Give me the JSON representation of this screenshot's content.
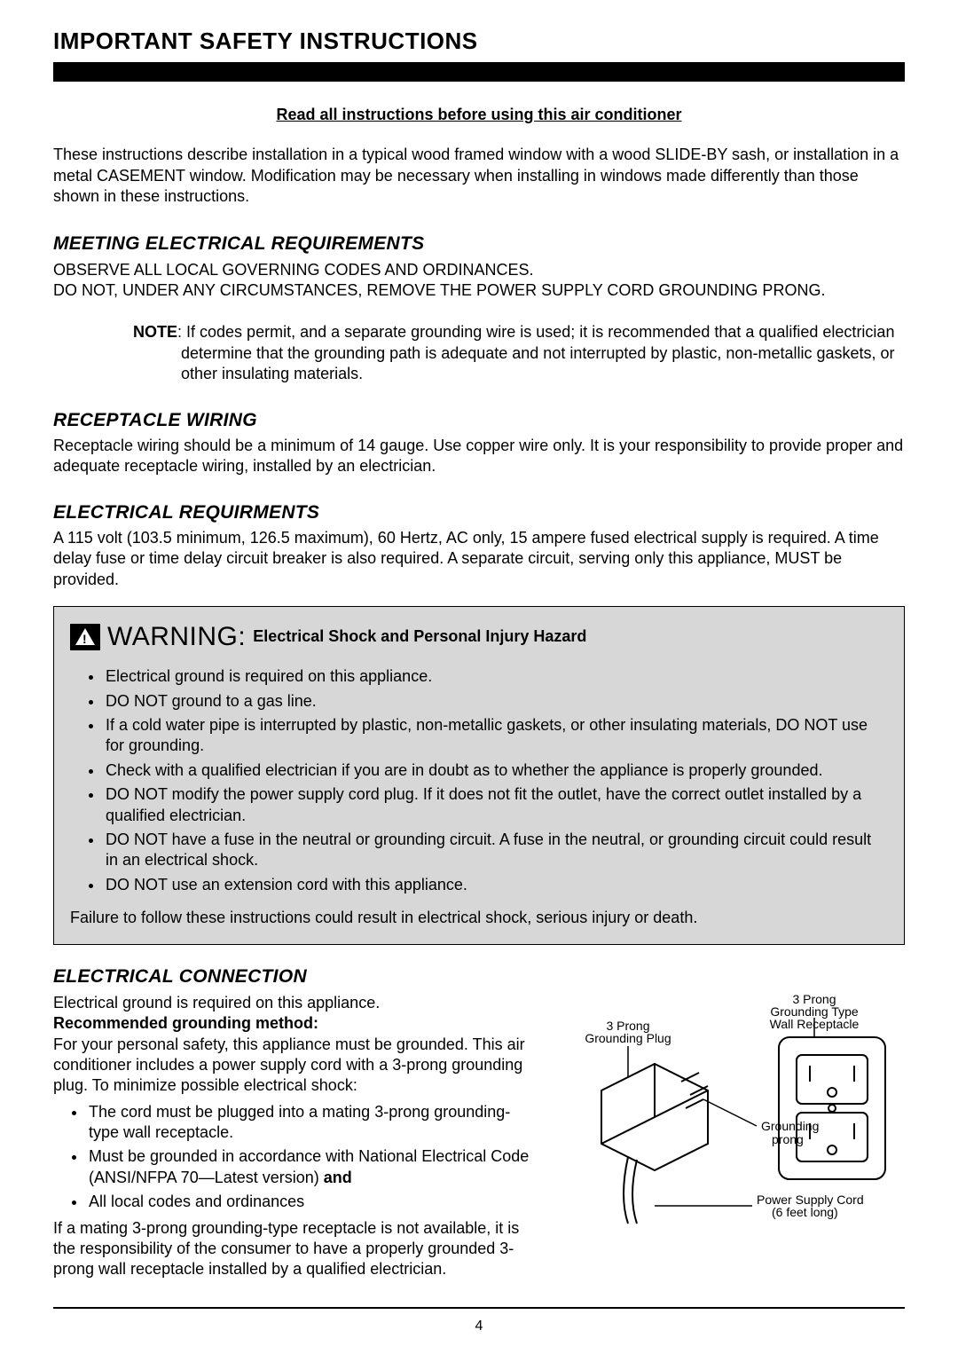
{
  "page": {
    "title": "IMPORTANT SAFETY INSTRUCTIONS",
    "read_all": "Read all instructions before using this air conditioner",
    "intro": "These instructions describe installation in a typical wood framed window with a wood SLIDE-BY sash, or installation in a metal CASEMENT window. Modification may be necessary when installing in windows made differently than those shown in these instructions.",
    "page_number": "4"
  },
  "meeting": {
    "heading": "MEETING ELECTRICAL REQUIREMENTS",
    "line1": "OBSERVE ALL LOCAL GOVERNING CODES AND ORDINANCES.",
    "line2": "DO NOT, UNDER ANY CIRCUMSTANCES, REMOVE THE POWER SUPPLY CORD GROUNDING PRONG.",
    "note_label": "NOTE",
    "note_text": ": If codes permit, and a separate grounding wire is used; it is recommended that a qualified electrician determine that the grounding path is adequate and not interrupted by plastic, non-metallic gaskets, or other insulating materials."
  },
  "receptacle": {
    "heading": "RECEPTACLE WIRING",
    "text": "Receptacle wiring should be a minimum of 14 gauge. Use copper wire only. It is your responsibility to provide proper and adequate receptacle wiring, installed by an electrician."
  },
  "electrical_req": {
    "heading": "ELECTRICAL REQUIRMENTS",
    "text": "A 115 volt (103.5 minimum, 126.5 maximum), 60 Hertz, AC only, 15 ampere fused electrical supply is required. A time delay fuse or time delay circuit breaker is also required. A separate circuit, serving only this appliance, MUST be provided."
  },
  "warning": {
    "word": "WARNING:",
    "subtitle": "Electrical Shock and Personal Injury Hazard",
    "bullets": [
      "Electrical ground is required on this appliance.",
      "DO NOT ground to a gas line.",
      "If a cold water pipe is interrupted by plastic, non-metallic gaskets, or other insulating materials, DO NOT use for grounding.",
      "Check with a qualified electrician if you are in doubt as to whether the appliance is properly grounded.",
      "DO NOT modify the power supply cord plug. If it does not fit the outlet, have the correct outlet installed by a qualified electrician.",
      "DO NOT have a fuse in the neutral or grounding circuit. A fuse in the neutral, or grounding circuit could result in an electrical shock.",
      "DO NOT use an extension cord with this appliance."
    ],
    "footer": "Failure to follow these instructions could result in electrical shock, serious injury or death."
  },
  "connection": {
    "heading": "ELECTRICAL CONNECTION",
    "line1": "Electrical ground is required on this appliance.",
    "rec_method_label": "Recommended grounding method:",
    "rec_method_text": "For your personal safety, this appliance must be grounded. This air conditioner includes a power supply cord with a 3-prong grounding plug. To minimize possible electrical shock:",
    "bullets": [
      "The cord must be plugged into a mating 3-prong grounding-type wall receptacle.",
      "Must be grounded in accordance with National Electrical Code (ANSI/NFPA 70—Latest version) and",
      "All local codes and ordinances"
    ],
    "after": "If a mating 3-prong grounding-type receptacle is not available, it is the responsibility of the consumer to have a properly grounded 3-prong wall receptacle installed by a qualified electrician."
  },
  "diagram": {
    "label_receptacle": "3 Prong Grounding Type Wall Receptacle",
    "label_plug": "3 Prong Grounding Plug",
    "label_prong": "Grounding prong",
    "label_cord": "Power Supply Cord (6 feet long)",
    "stroke": "#000000",
    "bg": "#ffffff"
  }
}
